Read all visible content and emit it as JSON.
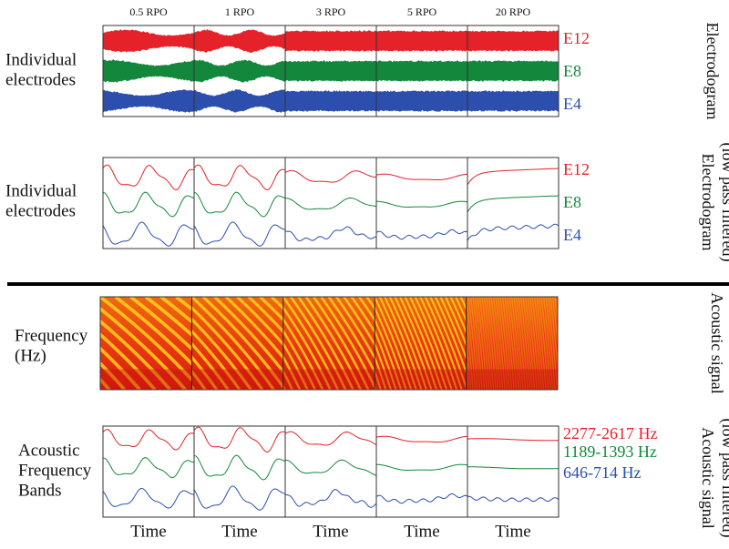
{
  "columns": [
    "0.5 RPO",
    "1 RPO",
    "3 RPO",
    "5 RPO",
    "20 RPO"
  ],
  "panels": [
    {
      "label": [
        "Individual",
        "electrodes"
      ],
      "side_label": [
        "Electrodogram"
      ],
      "traces": [
        "E12",
        "E8",
        "E4"
      ]
    },
    {
      "label": [
        "Individual",
        "electrodes"
      ],
      "side_label": [
        "Electrodogram",
        "(low pass filtered)"
      ],
      "traces": [
        "E12",
        "E8",
        "E4"
      ]
    },
    {
      "label": [
        "Frequency",
        "(Hz)"
      ],
      "side_label": [
        "Acoustic signal"
      ]
    },
    {
      "label": [
        "Acoustic",
        "Frequency",
        "Bands"
      ],
      "side_label": [
        "Acoustic signal",
        "(low pass filtered)"
      ],
      "traces": [
        "2277-2617 Hz",
        "1189-1393 Hz",
        "646-714 Hz"
      ]
    }
  ],
  "x_labels": [
    "Time",
    "Time",
    "Time",
    "Time",
    "Time"
  ]
}
